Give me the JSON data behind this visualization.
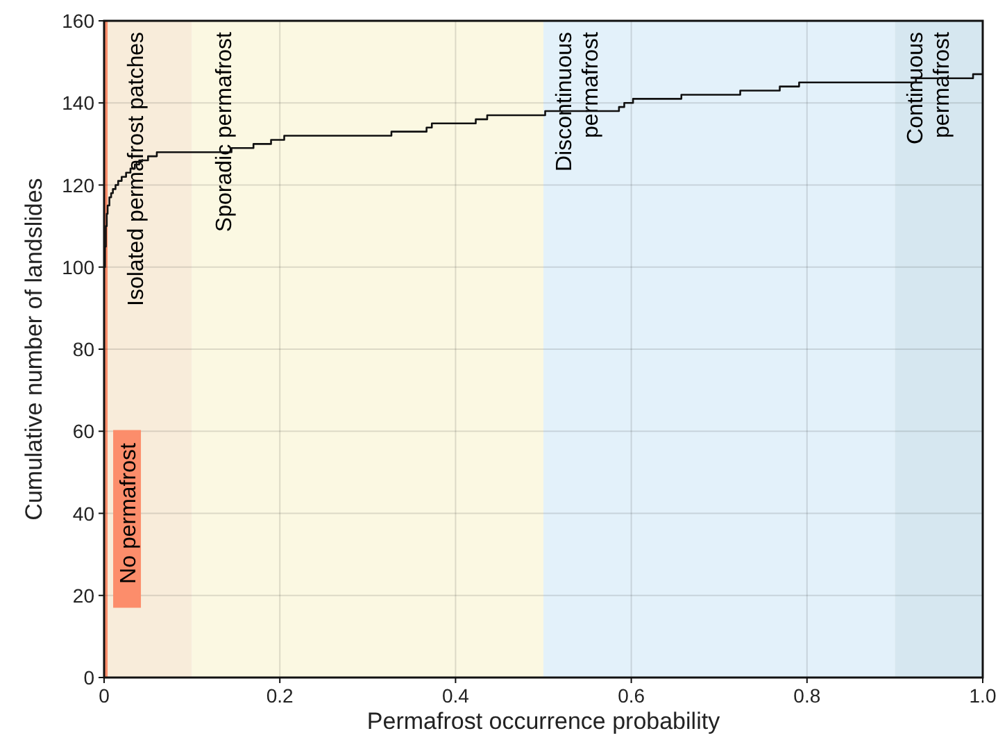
{
  "chart_data": {
    "type": "step",
    "xlabel": "Permafrost occurrence probability",
    "ylabel": "Cumulative number of landslides",
    "x": [
      0,
      0.001,
      0.002,
      0.003,
      0.004,
      0.006,
      0.008,
      0.01,
      0.013,
      0.016,
      0.02,
      0.025,
      0.03,
      0.035,
      0.04,
      0.05,
      0.06,
      0.145,
      0.17,
      0.19,
      0.205,
      0.327,
      0.367,
      0.373,
      0.423,
      0.436,
      0.502,
      0.586,
      0.592,
      0.602,
      0.657,
      0.724,
      0.769,
      0.791,
      0.924,
      0.989,
      1.0
    ],
    "series": [
      {
        "color": "#111111",
        "values": [
          100,
          105,
          110,
          113,
          115,
          117,
          118,
          119,
          120,
          121,
          122,
          123,
          124,
          125,
          126,
          127,
          128,
          129,
          130,
          131,
          132,
          133,
          134,
          135,
          136,
          137,
          138,
          139,
          140,
          141,
          142,
          143,
          144,
          145,
          146,
          147,
          147
        ]
      }
    ],
    "xlim": [
      0,
      1
    ],
    "ylim": [
      0,
      160
    ],
    "xticks": [
      0,
      0.2,
      0.4,
      0.6,
      0.8,
      {
        "value": 1,
        "label": "1.0"
      }
    ],
    "yticks": [
      0,
      20,
      40,
      60,
      80,
      100,
      120,
      140,
      160
    ],
    "grid": true,
    "bands": [
      {
        "axis": "x",
        "from": 0,
        "to": 0.1,
        "label": "Isolated permafrost patches",
        "color": "#f8ecda"
      },
      {
        "axis": "x",
        "from": 0.1,
        "to": 0.5,
        "label": "Sporadic permafrost",
        "color": "#fbf8e2"
      },
      {
        "axis": "x",
        "from": 0.5,
        "to": 0.9,
        "label": "Discontinuous\npermafrost",
        "color": "#e3f1fa"
      },
      {
        "axis": "x",
        "from": 0.9,
        "to": 1.0,
        "label": "Continuous\npermafrost",
        "color": "#d6e7f0"
      },
      {
        "axis": "x",
        "from": 0,
        "to": 0.004,
        "label": "No permafrost",
        "color": "#fc8d6b"
      }
    ]
  }
}
